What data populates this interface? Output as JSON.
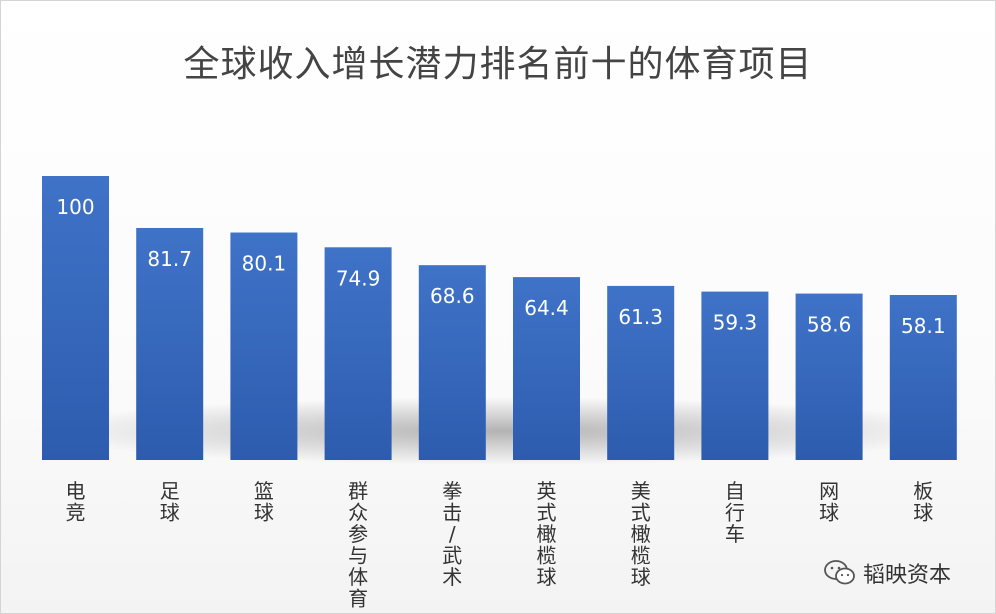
{
  "chart_data": {
    "type": "bar",
    "title": "全球收入增长潜力排名前十的体育项目",
    "xlabel": "",
    "ylabel": "",
    "categories": [
      "电竞",
      "足球",
      "篮球",
      "群众参与体育",
      "拳击/武术",
      "英式橄榄球",
      "美式橄榄球",
      "自行车",
      "网球",
      "板球"
    ],
    "values": [
      100,
      81.7,
      80.1,
      74.9,
      68.6,
      64.4,
      61.3,
      59.3,
      58.6,
      58.1
    ],
    "value_labels": [
      "100",
      "81.7",
      "80.1",
      "74.9",
      "68.6",
      "64.4",
      "61.3",
      "59.3",
      "58.6",
      "58.1"
    ],
    "ylim": [
      0,
      100
    ],
    "grid": false,
    "legend": "none",
    "bar_color": "#3F73C8",
    "bar_color_dark": "#2D5CAE"
  },
  "watermark": {
    "text": "韬映资本",
    "icon": "wechat-icon"
  }
}
